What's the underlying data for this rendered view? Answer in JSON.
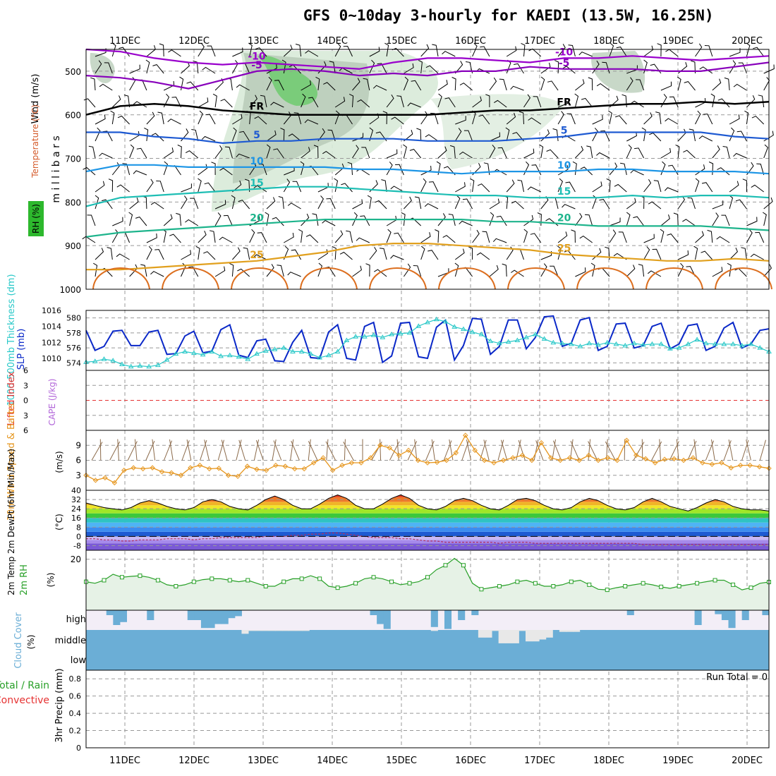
{
  "title": "GFS 0~10day 3-hourly for KAEDI (13.5W, 16.25N)",
  "dates": [
    "11DEC",
    "12DEC",
    "13DEC",
    "14DEC",
    "15DEC",
    "16DEC",
    "17DEC",
    "18DEC",
    "19DEC",
    "20DEC"
  ],
  "run_total": "Run Total = 0",
  "colors": {
    "wind_barb": "#000000",
    "temp_minus10": "#9900cc",
    "temp_minus5": "#8800bb",
    "temp_fr": "#000000",
    "temp_5": "#1e5ad2",
    "temp_10": "#1e96e6",
    "temp_15": "#1ebeb4",
    "temp_20": "#1eb48c",
    "temp_25": "#e1a01e",
    "temp_30": "#dc6e1e",
    "slp": "#0a28c8",
    "thickness": "#28c8c8",
    "wind10m": "#e6961e",
    "rh2m": "#28a028",
    "cloud": "#6baed6",
    "lifted_index_zero": "#e63232"
  },
  "chart_data": [
    {
      "panel": "upper-air",
      "type": "contour",
      "ylabel_main": "m i l l i b a r s",
      "ylabel_wind": "Wind (m/s)",
      "ylabel_temp": "Temperature (°C)",
      "ylabel_rh": "RH (%)",
      "y_ticks": [
        "500",
        "600",
        "700",
        "800",
        "900",
        "1000"
      ],
      "ylim": [
        450,
        1000
      ],
      "contours": [
        {
          "label": "-10",
          "color_key": "temp_minus10",
          "p": [
            450,
            455,
            470,
            480,
            485,
            480,
            485,
            490,
            495,
            480,
            470,
            470,
            475,
            480,
            470,
            470,
            465,
            470,
            475,
            470,
            465
          ]
        },
        {
          "label": "-5",
          "color_key": "temp_minus5",
          "p": [
            510,
            515,
            525,
            540,
            520,
            500,
            495,
            500,
            510,
            505,
            510,
            500,
            500,
            490,
            495,
            495,
            495,
            500,
            500,
            490,
            480
          ]
        },
        {
          "label": "FR",
          "color_key": "temp_fr",
          "p": [
            600,
            580,
            575,
            580,
            590,
            595,
            600,
            600,
            600,
            600,
            600,
            595,
            590,
            590,
            585,
            580,
            575,
            575,
            570,
            575,
            570
          ]
        },
        {
          "label": "5",
          "color_key": "temp_5",
          "p": [
            640,
            640,
            650,
            655,
            665,
            660,
            660,
            655,
            655,
            655,
            660,
            660,
            660,
            655,
            650,
            640,
            640,
            640,
            640,
            650,
            655
          ]
        },
        {
          "label": "10",
          "color_key": "temp_10",
          "p": [
            730,
            715,
            715,
            720,
            720,
            720,
            720,
            720,
            725,
            725,
            730,
            735,
            730,
            730,
            730,
            725,
            725,
            730,
            730,
            730,
            735
          ]
        },
        {
          "label": "15",
          "color_key": "temp_15",
          "p": [
            810,
            790,
            785,
            780,
            775,
            770,
            765,
            765,
            770,
            775,
            780,
            785,
            785,
            790,
            790,
            790,
            785,
            790,
            785,
            785,
            790
          ]
        },
        {
          "label": "20",
          "color_key": "temp_20",
          "p": [
            880,
            870,
            865,
            860,
            855,
            850,
            845,
            840,
            840,
            840,
            840,
            840,
            845,
            845,
            850,
            855,
            855,
            855,
            855,
            860,
            865
          ]
        },
        {
          "label": "25",
          "color_key": "temp_25",
          "p": [
            955,
            955,
            950,
            945,
            940,
            935,
            925,
            915,
            900,
            895,
            895,
            900,
            905,
            910,
            920,
            925,
            930,
            935,
            935,
            930,
            935
          ]
        }
      ]
    },
    {
      "panel": "slp-thickness",
      "type": "line",
      "ylabel_left": "1000-500mb Thickness (dm)",
      "ylabel_right": "SLP (mb)",
      "left_ticks": [
        "574",
        "576",
        "578",
        "580"
      ],
      "right_ticks": [
        "1010",
        "1012",
        "1014",
        "1016"
      ],
      "series": [
        {
          "name": "SLP",
          "color_key": "slp",
          "axis": "right",
          "ylim": [
            1008.5,
            1016
          ],
          "values": [
            1013.5,
            1011,
            1011.5,
            1013.4,
            1013.5,
            1011.6,
            1011.6,
            1013.3,
            1013.5,
            1010.5,
            1010.6,
            1012.8,
            1013.4,
            1010.7,
            1010.9,
            1013.6,
            1014.2,
            1010.4,
            1010.1,
            1012.2,
            1012.4,
            1009.7,
            1009.6,
            1012.0,
            1013.5,
            1010.1,
            1010.0,
            1013.3,
            1014.2,
            1010.0,
            1009.8,
            1014.0,
            1014.5,
            1009.5,
            1010.3,
            1014.4,
            1014.5,
            1010.2,
            1010.0,
            1013.9,
            1014.8,
            1009.8,
            1011.6,
            1015.0,
            1014.9,
            1010.5,
            1011.5,
            1014.8,
            1014.8,
            1011.2,
            1012.6,
            1015.2,
            1015.3,
            1011.5,
            1011.9,
            1014.8,
            1015.1,
            1011.0,
            1011.5,
            1014.3,
            1014.4,
            1011.3,
            1011.6,
            1014.0,
            1014.4,
            1011.2,
            1011.8,
            1014.1,
            1014.3,
            1011.0,
            1011.5,
            1013.8,
            1014.5,
            1011.3,
            1011.8,
            1013.5,
            1013.7
          ]
        },
        {
          "name": "Thickness",
          "color_key": "thickness",
          "axis": "left",
          "ylim": [
            573,
            581
          ],
          "values": [
            574.1,
            574.2,
            574.5,
            574.3,
            573.8,
            573.5,
            573.6,
            573.5,
            573.7,
            574.4,
            575.2,
            575.5,
            575.3,
            575.1,
            575.5,
            574.9,
            575.0,
            574.8,
            574.5,
            575.2,
            575.6,
            575.8,
            576.0,
            575.5,
            575.5,
            575.2,
            574.7,
            575.0,
            575.5,
            577.0,
            577.5,
            577.5,
            577.7,
            577.4,
            577.8,
            577.9,
            578.0,
            578.9,
            579.4,
            579.8,
            579.5,
            578.8,
            578.5,
            578.1,
            577.8,
            576.9,
            576.6,
            576.8,
            577.0,
            577.4,
            577.8,
            577.2,
            576.7,
            576.6,
            576.5,
            576.2,
            576.6,
            576.4,
            576.7,
            576.5,
            576.3,
            576.6,
            576.4,
            576.5,
            576.5,
            575.9,
            576.0,
            576.5,
            577.1,
            576.6,
            576.5,
            576.5,
            576.5,
            576.3,
            576.5,
            576.0,
            575.5
          ]
        }
      ]
    },
    {
      "panel": "cape-lifted-index",
      "type": "line",
      "ylabel_left": "Lifted Index",
      "ylabel_right": "CAPE (J/kg)",
      "y_ticks": [
        "6",
        "3",
        "0",
        "3",
        "6"
      ],
      "ylim": [
        -6,
        6
      ],
      "series": [
        {
          "name": "Lifted Index",
          "color_key": "lifted_index_zero",
          "values": []
        }
      ]
    },
    {
      "panel": "wind-10m",
      "type": "line",
      "ylabel": "10m Wind Speed & Barbs",
      "ylabel_unit": "(m/s)",
      "y_ticks": [
        "3",
        "6",
        "9"
      ],
      "ylim": [
        0,
        12
      ],
      "series": [
        {
          "name": "10m Wind Speed",
          "color_key": "wind10m",
          "values": [
            3.0,
            2.0,
            2.5,
            1.5,
            4.0,
            4.5,
            4.3,
            4.5,
            3.7,
            3.5,
            3.0,
            4.5,
            5.0,
            4.3,
            4.4,
            3.0,
            2.8,
            4.8,
            4.2,
            4.0,
            5.0,
            4.8,
            4.3,
            4.3,
            5.5,
            6.5,
            4.0,
            5.0,
            5.5,
            5.5,
            6.5,
            9.0,
            8.5,
            7.0,
            8.0,
            6.0,
            5.5,
            5.6,
            6.0,
            7.5,
            11.0,
            8.0,
            6.0,
            5.5,
            6.0,
            6.5,
            7.0,
            6.0,
            9.5,
            6.5,
            6.0,
            6.5,
            6.0,
            7.0,
            6.0,
            6.5,
            6.0,
            10.0,
            7.0,
            6.3,
            5.5,
            6.2,
            6.3,
            6.0,
            6.5,
            5.5,
            5.2,
            5.5,
            4.5,
            5.0,
            5.0,
            4.7,
            4.4
          ]
        }
      ]
    },
    {
      "panel": "temp-2m",
      "type": "area",
      "ylabel": "2m Temp 2m DewPt (6hr Min/Max)",
      "ylabel_unit": "(°C)",
      "y_ticks": [
        "40",
        "32",
        "24",
        "16",
        "8",
        "0",
        "-8"
      ],
      "ylim": [
        -12,
        40
      ],
      "series": [
        {
          "name": "2m Temp",
          "values": [
            29,
            27,
            25,
            24,
            23,
            25,
            29,
            31,
            29,
            26,
            24,
            23,
            25,
            30,
            32,
            30,
            26,
            24,
            23,
            27,
            32,
            35,
            32,
            27,
            24,
            24,
            28,
            33,
            36,
            33,
            27,
            24,
            24,
            28,
            33,
            36,
            33,
            27,
            24,
            23,
            26,
            31,
            33,
            31,
            27,
            24,
            23,
            27,
            32,
            33,
            31,
            27,
            24,
            23,
            25,
            30,
            33,
            31,
            27,
            24,
            23,
            25,
            30,
            33,
            30,
            26,
            24,
            22,
            25,
            29,
            32,
            30,
            26,
            24,
            23,
            23,
            22
          ]
        },
        {
          "name": "2m DewPt",
          "values": [
            -2,
            -2,
            -3,
            -3,
            -4,
            -4,
            -3,
            -3,
            -3,
            -2,
            -2,
            -2,
            -3,
            -2,
            -2,
            -1,
            -1,
            -1,
            -1,
            -1,
            0,
            0,
            0,
            1,
            1,
            2,
            2,
            3,
            3,
            2,
            1,
            0,
            -1,
            -1,
            -1,
            -2,
            -2,
            -3,
            -4,
            -4,
            -5,
            -5,
            -5,
            -5,
            -5,
            -5,
            -6,
            -5,
            -5,
            -5,
            -6,
            -6,
            -6,
            -6,
            -6,
            -6,
            -6,
            -6,
            -6,
            -6,
            -6,
            -6,
            -7,
            -7,
            -7,
            -7,
            -7,
            -7,
            -7,
            -7,
            -7,
            -7,
            -7,
            -7,
            -7,
            -7,
            -7
          ]
        }
      ]
    },
    {
      "panel": "rh-2m",
      "type": "line",
      "ylabel": "2m RH",
      "ylabel_unit": "(%)",
      "y_ticks": [
        "20"
      ],
      "ylim": [
        3,
        23
      ],
      "series": [
        {
          "name": "2m RH",
          "color_key": "rh2m",
          "values": [
            12.5,
            12.0,
            13.0,
            15.0,
            14.0,
            14.3,
            14.5,
            14.0,
            13.0,
            11.5,
            11.0,
            11.5,
            12.5,
            13.2,
            13.5,
            13.5,
            13.0,
            12.5,
            13.0,
            12.0,
            11.0,
            11.0,
            12.5,
            13.5,
            13.5,
            14.5,
            13.5,
            11.0,
            10.5,
            11.0,
            12.0,
            13.5,
            14.0,
            13.5,
            12.5,
            11.5,
            12.0,
            12.5,
            14.0,
            16.5,
            18.0,
            20.3,
            18.0,
            12.0,
            10.0,
            10.5,
            11.0,
            11.5,
            12.5,
            13.0,
            12.0,
            11.0,
            11.0,
            11.5,
            12.5,
            13.0,
            11.5,
            10.0,
            9.8,
            10.5,
            11.0,
            11.5,
            12.0,
            11.5,
            10.8,
            10.3,
            11.0,
            11.5,
            12.0,
            12.5,
            13.0,
            13.0,
            11.5,
            9.8,
            10.5,
            12.0,
            12.4
          ]
        }
      ]
    },
    {
      "panel": "cloud-cover",
      "type": "bar",
      "ylabel": "Cloud Cover",
      "ylabel_unit": "(%)",
      "levels": [
        "high",
        "middle",
        "low"
      ],
      "high": [
        0,
        0,
        0,
        0.25,
        0.75,
        0.6,
        0,
        0,
        0,
        0.5,
        0,
        0,
        0,
        0,
        0,
        0.5,
        0.5,
        0.9,
        0.9,
        0.7,
        0.7,
        0.4,
        0.3,
        0,
        0,
        0,
        0,
        0,
        0,
        0,
        0,
        0,
        0,
        0,
        0,
        0,
        0,
        0,
        0,
        0,
        0,
        0,
        0.25,
        0.7,
        0.95,
        0,
        0,
        0,
        0,
        0,
        0,
        0.85,
        0,
        0.95,
        0,
        0.5,
        0,
        0.25,
        0,
        0,
        0,
        0,
        0,
        0,
        0,
        0,
        0,
        0,
        0,
        0,
        0,
        0,
        0,
        0,
        0,
        0,
        0,
        0,
        0,
        0,
        0.25,
        0,
        0,
        0,
        0,
        0,
        0,
        0,
        0,
        0,
        0.75,
        0,
        0,
        0.2,
        0.5,
        0.9,
        0,
        0.5,
        0,
        0,
        0.25
      ],
      "middle": [
        1,
        1,
        1,
        1,
        1,
        1,
        1,
        1,
        1,
        1,
        1,
        1,
        1,
        1,
        1,
        1,
        1,
        1,
        1,
        1,
        1,
        1,
        1,
        0.8,
        0.95,
        0.95,
        0.95,
        0.95,
        0.95,
        0.95,
        0.95,
        0.95,
        0.95,
        1,
        1,
        1,
        1,
        1,
        1,
        1,
        1,
        1,
        1,
        1,
        1,
        1,
        1,
        1,
        1,
        1,
        1,
        0.95,
        1,
        1,
        1,
        1,
        1,
        1,
        0.6,
        0.6,
        0.95,
        0.3,
        0.3,
        0.3,
        0.95,
        0.4,
        0.4,
        0.5,
        0.6,
        1,
        0.9,
        0.9,
        0.9,
        1,
        1,
        1,
        1,
        1,
        1,
        1,
        1,
        1,
        1,
        1,
        1,
        1,
        1,
        1,
        1,
        1,
        1,
        1,
        1,
        1,
        1,
        1,
        1,
        1,
        1,
        1,
        1
      ],
      "low": [
        1
      ]
    },
    {
      "panel": "precip",
      "type": "bar",
      "ylabel_left": "Total / Rain",
      "ylabel_left2": "Convective",
      "ylabel_right": "3hr Precip (mm)",
      "y_ticks": [
        "0",
        "0.2",
        "0.4",
        "0.6",
        "0.8"
      ],
      "ylim": [
        0,
        0.9
      ],
      "values": []
    }
  ]
}
